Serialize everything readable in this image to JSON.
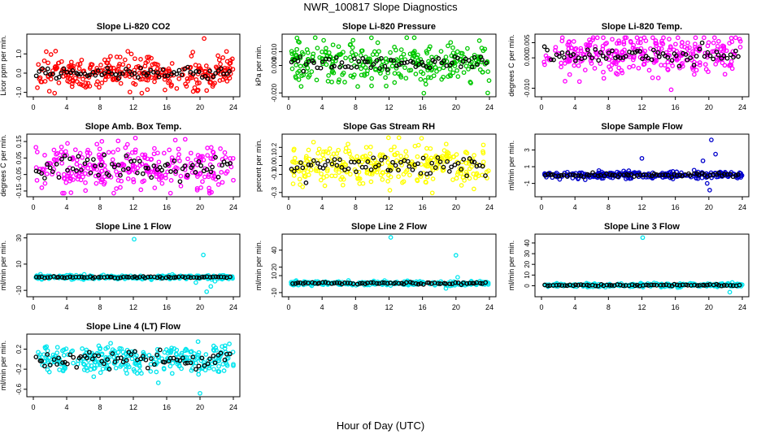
{
  "title": "NWR_100817  Slope Diagnostics",
  "xlabel": "Hour of Day (UTC)",
  "chart_data": [
    {
      "type": "scatter",
      "title": "Slope Li-820 CO2",
      "ylabel": "Licor ppm per min.",
      "color": "#ff0000",
      "xlim": [
        0,
        24
      ],
      "ylim": [
        -1.1,
        1.9
      ],
      "xticks": [
        "0",
        "4",
        "8",
        "12",
        "16",
        "20",
        "24"
      ],
      "yticks": [
        "-1.0",
        "0.0",
        "1.0"
      ],
      "n": 300,
      "center": 0.0,
      "spread": 0.42,
      "black_spread": 0.15,
      "outliers": [
        [
          20.5,
          1.8
        ],
        [
          20.8,
          -0.9
        ]
      ]
    },
    {
      "type": "scatter",
      "title": "Slope Li-820 Pressure",
      "ylabel": "kPa per min.",
      "color": "#00c800",
      "xlim": [
        0,
        24
      ],
      "ylim": [
        -0.021,
        0.021
      ],
      "xticks": [
        "0",
        "4",
        "8",
        "12",
        "16",
        "20",
        "24"
      ],
      "yticks": [
        "-0.020",
        "0.000",
        "0.010"
      ],
      "n": 300,
      "center": 0.002,
      "spread": 0.0075,
      "black_spread": 0.003,
      "outliers": [
        [
          1.0,
          0.02
        ],
        [
          23.8,
          -0.02
        ]
      ]
    },
    {
      "type": "scatter",
      "title": "Slope Li-820 Temp.",
      "ylabel": "degrees C per min.",
      "color": "#ff00ff",
      "xlim": [
        0,
        24
      ],
      "ylim": [
        -0.012,
        0.007
      ],
      "xticks": [
        "0",
        "4",
        "8",
        "12",
        "16",
        "20",
        "24"
      ],
      "yticks": [
        "-0.010",
        "0.000",
        "0.005"
      ],
      "n": 300,
      "center": 0.001,
      "spread": 0.0035,
      "black_spread": 0.0015,
      "outliers": [
        [
          15.5,
          -0.0105
        ]
      ]
    },
    {
      "type": "scatter",
      "title": "Slope Amb. Box Temp.",
      "ylabel": "degrees C per min.",
      "color": "#ff00ff",
      "xlim": [
        0,
        24
      ],
      "ylim": [
        -0.17,
        0.18
      ],
      "xticks": [
        "0",
        "4",
        "8",
        "12",
        "16",
        "20",
        "24"
      ],
      "yticks": [
        "-0.15",
        "-0.05",
        "0.05",
        "0.15"
      ],
      "n": 300,
      "center": 0.0,
      "spread": 0.07,
      "black_spread": 0.035,
      "outliers": []
    },
    {
      "type": "scatter",
      "title": "Slope Gas Stream RH",
      "ylabel": "percent per min.",
      "color": "#ffff00",
      "xlim": [
        0,
        24
      ],
      "ylim": [
        -0.32,
        0.32
      ],
      "xticks": [
        "0",
        "4",
        "8",
        "12",
        "16",
        "20",
        "24"
      ],
      "yticks": [
        "-0.3",
        "-0.1",
        "0.0",
        "0.1",
        "0.2"
      ],
      "n": 300,
      "center": 0.0,
      "spread": 0.12,
      "black_spread": 0.06,
      "outliers": []
    },
    {
      "type": "scatter",
      "title": "Slope Sample Flow",
      "ylabel": "ml/min per min.",
      "color": "#0000cc",
      "xlim": [
        0,
        24
      ],
      "ylim": [
        -2.3,
        4.6
      ],
      "xticks": [
        "0",
        "4",
        "8",
        "12",
        "16",
        "20",
        "24"
      ],
      "yticks": [
        "-1",
        "1",
        "3"
      ],
      "n": 260,
      "center": 0.0,
      "spread": 0.2,
      "black_spread": 0.1,
      "outliers": [
        [
          12.0,
          2.0
        ],
        [
          19.3,
          1.7
        ],
        [
          19.8,
          -1.0
        ],
        [
          20.1,
          -1.8
        ],
        [
          20.3,
          4.2
        ],
        [
          20.8,
          2.5
        ]
      ]
    },
    {
      "type": "scatter",
      "title": "Slope Line 1 Flow",
      "ylabel": "ml/min per min.",
      "color": "#00e5ee",
      "xlim": [
        0,
        24
      ],
      "ylim": [
        -13,
        31
      ],
      "xticks": [
        "0",
        "4",
        "8",
        "12",
        "16",
        "20",
        "24"
      ],
      "yticks": [
        "-10",
        "10",
        "30"
      ],
      "n": 260,
      "center": 0.0,
      "spread": 0.8,
      "black_spread": 0.3,
      "outliers": [
        [
          12.1,
          29
        ],
        [
          19.5,
          -4
        ],
        [
          20.4,
          17
        ],
        [
          20.8,
          -11
        ],
        [
          21.3,
          -7
        ],
        [
          21.8,
          -3
        ]
      ]
    },
    {
      "type": "scatter",
      "title": "Slope Line 2 Flow",
      "ylabel": "ml/min per min.",
      "color": "#00e5ee",
      "xlim": [
        0,
        24
      ],
      "ylim": [
        -12,
        56
      ],
      "xticks": [
        "0",
        "4",
        "8",
        "12",
        "16",
        "20",
        "24"
      ],
      "yticks": [
        "-10",
        "10",
        "20",
        "40"
      ],
      "n": 260,
      "center": 1.0,
      "spread": 1.2,
      "black_spread": 0.6,
      "outliers": [
        [
          12.2,
          55
        ],
        [
          18.2,
          3
        ],
        [
          18.8,
          -5
        ],
        [
          19.3,
          -2
        ],
        [
          20.0,
          34
        ],
        [
          20.2,
          8
        ]
      ]
    },
    {
      "type": "scatter",
      "title": "Slope Line 3 Flow",
      "ylabel": "ml/min per min.",
      "color": "#00e5ee",
      "xlim": [
        0,
        24
      ],
      "ylim": [
        -8,
        46
      ],
      "xticks": [
        "0",
        "4",
        "8",
        "12",
        "16",
        "20",
        "24"
      ],
      "yticks": [
        "0",
        "10",
        "20",
        "30",
        "40"
      ],
      "n": 260,
      "center": 0.5,
      "spread": 0.8,
      "black_spread": 0.4,
      "outliers": [
        [
          12.1,
          45
        ],
        [
          22.5,
          -6
        ],
        [
          22.8,
          3
        ]
      ]
    },
    {
      "type": "scatter",
      "title": "Slope Line 4 (LT) Flow",
      "ylabel": "ml/min per min.",
      "color": "#00e5ee",
      "xlim": [
        0,
        24
      ],
      "ylim": [
        -0.7,
        0.45
      ],
      "xticks": [
        "0",
        "4",
        "8",
        "12",
        "16",
        "20",
        "24"
      ],
      "yticks": [
        "-0.6",
        "-0.2",
        "0.2"
      ],
      "n": 300,
      "center": 0.0,
      "spread": 0.14,
      "black_spread": 0.08,
      "outliers": [
        [
          20.0,
          -0.68
        ]
      ]
    }
  ]
}
